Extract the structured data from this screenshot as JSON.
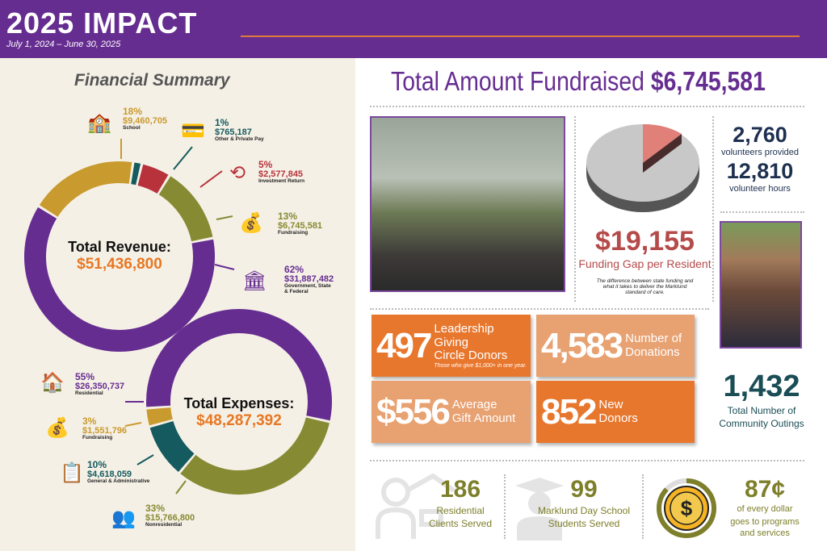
{
  "header": {
    "title": "2025 IMPACT",
    "subtitle": "July 1, 2024 – June 30, 2025"
  },
  "financial": {
    "title": "Financial Summary",
    "revenue": {
      "label": "Total Revenue:",
      "total": "$51,436,800"
    },
    "expenses": {
      "label": "Total Expenses:",
      "total": "$48,287,392"
    }
  },
  "chart_data": [
    {
      "type": "pie",
      "title": "Total Revenue:",
      "total": "$51,436,800",
      "series": [
        {
          "name": "School",
          "percent": "18%",
          "value": "$9,460,705",
          "amount": 9460705,
          "color": "#c99a2e",
          "icon": "school-icon"
        },
        {
          "name": "Other & Private Pay",
          "percent": "1%",
          "value": "$765,187",
          "amount": 765187,
          "color": "#145a5e",
          "icon": "credit-card-lock-icon"
        },
        {
          "name": "Investment Return",
          "percent": "5%",
          "value": "$2,577,845",
          "amount": 2577845,
          "color": "#b8323c",
          "icon": "dollar-cycle-icon"
        },
        {
          "name": "Fundraising",
          "percent": "13%",
          "value": "$6,745,581",
          "amount": 6745581,
          "color": "#868a33",
          "icon": "money-bag-hand-icon"
        },
        {
          "name": "Government, State & Federal",
          "percent": "62%",
          "value": "$31,887,482",
          "amount": 31887482,
          "color": "#662d91",
          "icon": "government-building-icon"
        }
      ]
    },
    {
      "type": "pie",
      "title": "Total Expenses:",
      "total": "$48,287,392",
      "series": [
        {
          "name": "Residential",
          "percent": "55%",
          "value": "$26,350,737",
          "amount": 26350737,
          "color": "#662d91",
          "icon": "house-icon"
        },
        {
          "name": "Nonresidential",
          "percent": "33%",
          "value": "$15,766,800",
          "amount": 15766800,
          "color": "#868a33",
          "icon": "people-group-icon"
        },
        {
          "name": "General & Administrative",
          "percent": "10%",
          "value": "$4,618,059",
          "amount": 4618059,
          "color": "#145a5e",
          "icon": "clipboard-icon"
        },
        {
          "name": "Fundraising",
          "percent": "3%",
          "value": "$1,551,796",
          "amount": 1551796,
          "color": "#c99a2e",
          "icon": "money-bag-hand-icon"
        }
      ]
    }
  ],
  "fundraised": {
    "label": "Total Amount Fundraised",
    "amount": "$6,745,581"
  },
  "gap": {
    "amount": "$19,155",
    "label": "Funding Gap per Resident",
    "note": "The difference between state funding and what it takes to deliver the Marklund standard of care."
  },
  "volunteers": {
    "count": "2,760",
    "count_label": "volunteers provided",
    "hours": "12,810",
    "hours_label": "volunteer hours"
  },
  "tiles": [
    {
      "number": "497",
      "line1": "Leadership Giving",
      "line2": "Circle Donors",
      "note": "Those who give $1,000+ in one year.",
      "color": "#e8772e"
    },
    {
      "number": "4,583",
      "line1": "Number of",
      "line2": "Donations",
      "color": "#e8a171"
    },
    {
      "number": "$556",
      "line1": "Average",
      "line2": "Gift Amount",
      "color": "#e8a171"
    },
    {
      "number": "852",
      "line1": "New",
      "line2": "Donors",
      "color": "#e8772e"
    }
  ],
  "outings": {
    "count": "1,432",
    "line1": "Total Number of",
    "line2": "Community Outings"
  },
  "bottom": [
    {
      "number": "186",
      "line1": "Residential",
      "line2": "Clients Served",
      "icon": "person-house-icon"
    },
    {
      "number": "99",
      "line1": "Marklund Day School",
      "line2": "Students Served",
      "icon": "graduate-icon"
    },
    {
      "number": "87¢",
      "line1": "of every dollar",
      "line2": "goes to programs",
      "line3": "and services",
      "icon": "dollar-coin-icon",
      "percent": 87
    }
  ]
}
